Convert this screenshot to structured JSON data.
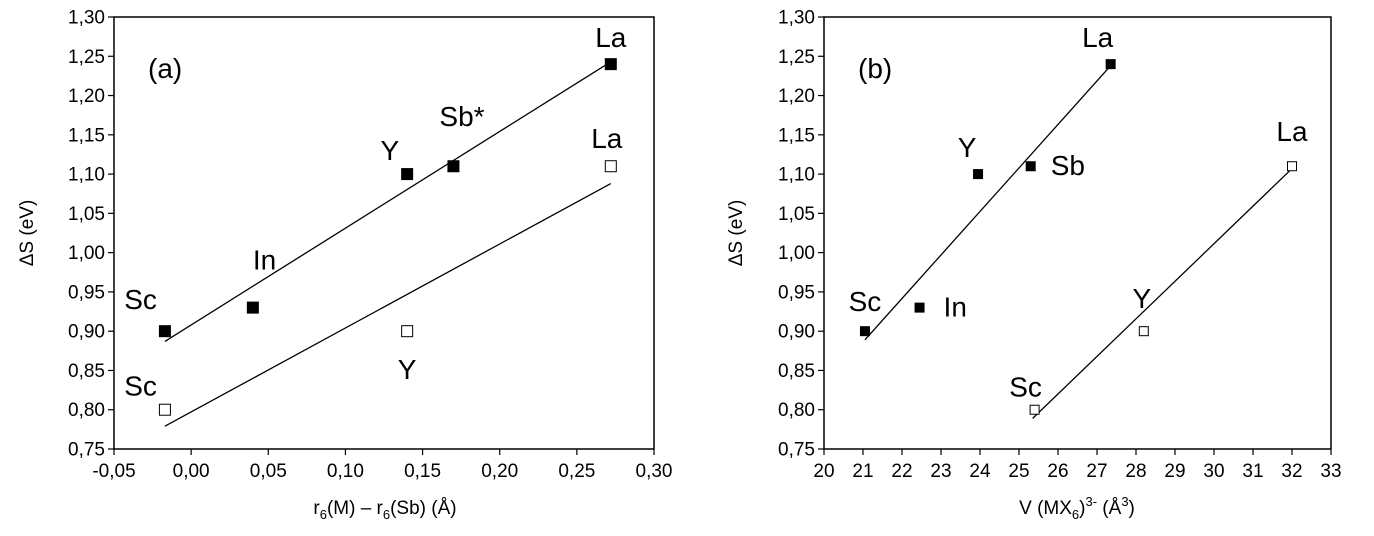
{
  "chart_data": [
    {
      "type": "scatter",
      "panel_label": "(a)",
      "xlabel": "r6(M) – r6(Sb) (Å)",
      "xlabel_parts": {
        "pre": "r",
        "sub1": "6",
        "mid": "(M) – r",
        "sub2": "6",
        "post": "(Sb) (Å)"
      },
      "ylabel": "ΔS (eV)",
      "xlim": [
        -0.05,
        0.3
      ],
      "ylim": [
        0.75,
        1.3
      ],
      "xticks": [
        "-0,05",
        "0,00",
        "0,05",
        "0,10",
        "0,15",
        "0,20",
        "0,25",
        "0,30"
      ],
      "yticks": [
        "0,75",
        "0,80",
        "0,85",
        "0,90",
        "0,95",
        "1,00",
        "1,05",
        "1,10",
        "1,15",
        "1,20",
        "1,25",
        "1,30"
      ],
      "grid": false,
      "series": [
        {
          "marker": "filled-square",
          "points": [
            {
              "label": "Sc",
              "x": -0.017,
              "y": 0.9
            },
            {
              "label": "In",
              "x": 0.04,
              "y": 0.93
            },
            {
              "label": "Y",
              "x": 0.14,
              "y": 1.1
            },
            {
              "label": "Sb*",
              "x": 0.17,
              "y": 1.11
            },
            {
              "label": "La",
              "x": 0.272,
              "y": 1.24
            }
          ],
          "fit": {
            "x1": -0.017,
            "y1": 0.887,
            "x2": 0.272,
            "y2": 1.243
          }
        },
        {
          "marker": "open-square",
          "points": [
            {
              "label": "Sc",
              "x": -0.017,
              "y": 0.8
            },
            {
              "label": "Y",
              "x": 0.14,
              "y": 0.9
            },
            {
              "label": "La",
              "x": 0.272,
              "y": 1.11
            }
          ],
          "fit": {
            "x1": -0.017,
            "y1": 0.779,
            "x2": 0.272,
            "y2": 1.088
          }
        }
      ]
    },
    {
      "type": "scatter",
      "panel_label": "(b)",
      "xlabel": "V (MX6)3- (Å3)",
      "xlabel_parts": {
        "pre": "V (MX",
        "sub1": "6",
        "mid": ")",
        "sup1": "3-",
        "post": " (Å",
        "sup2": "3",
        "end": ")"
      },
      "ylabel": "ΔS (eV)",
      "xlim": [
        20,
        33
      ],
      "ylim": [
        0.75,
        1.3
      ],
      "xticks": [
        "20",
        "21",
        "22",
        "23",
        "24",
        "25",
        "26",
        "27",
        "28",
        "29",
        "30",
        "31",
        "32",
        "33"
      ],
      "yticks": [
        "0,75",
        "0,80",
        "0,85",
        "0,90",
        "0,95",
        "1,00",
        "1,05",
        "1,10",
        "1,15",
        "1,20",
        "1,25",
        "1,30"
      ],
      "grid": false,
      "series": [
        {
          "marker": "filled-square",
          "points": [
            {
              "label": "Sc",
              "x": 21.05,
              "y": 0.9
            },
            {
              "label": "In",
              "x": 22.45,
              "y": 0.93
            },
            {
              "label": "Y",
              "x": 23.95,
              "y": 1.1
            },
            {
              "label": "Sb",
              "x": 25.3,
              "y": 1.11
            },
            {
              "label": "La",
              "x": 27.35,
              "y": 1.24
            }
          ],
          "fit": {
            "x1": 21.05,
            "y1": 0.889,
            "x2": 27.35,
            "y2": 1.238
          }
        },
        {
          "marker": "open-square",
          "points": [
            {
              "label": "Sc",
              "x": 25.4,
              "y": 0.8
            },
            {
              "label": "Y",
              "x": 28.2,
              "y": 0.9
            },
            {
              "label": "La",
              "x": 32.0,
              "y": 1.11
            }
          ],
          "fit": {
            "x1": 25.35,
            "y1": 0.789,
            "x2": 32.0,
            "y2": 1.107
          }
        }
      ]
    }
  ]
}
